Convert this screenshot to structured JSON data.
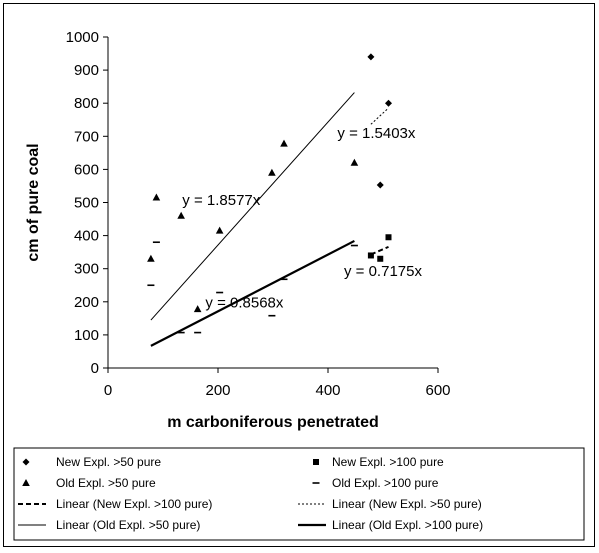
{
  "colors": {
    "axis": "#000000",
    "marker": "#000000",
    "thin_line": "#000000"
  },
  "chart_data": {
    "type": "scatter",
    "xlabel": "m carboniferous penetrated",
    "ylabel": "cm of pure coal",
    "xlim": [
      0,
      600
    ],
    "ylim": [
      0,
      1000
    ],
    "xticks": [
      "0",
      "200",
      "400",
      "600"
    ],
    "yticks": [
      "0",
      "100",
      "200",
      "300",
      "400",
      "500",
      "600",
      "700",
      "800",
      "900",
      "1000"
    ],
    "grid": false,
    "legend_position": "bottom",
    "series": [
      {
        "name": "New Expl. >50 pure",
        "marker": "diamond",
        "points": [
          [
            478,
            940
          ],
          [
            510,
            800
          ],
          [
            495,
            553
          ]
        ]
      },
      {
        "name": "New Expl. >100 pure",
        "marker": "square",
        "points": [
          [
            478,
            340
          ],
          [
            495,
            330
          ],
          [
            510,
            395
          ]
        ]
      },
      {
        "name": "Old Expl. >50 pure",
        "marker": "triangle",
        "points": [
          [
            78,
            330
          ],
          [
            88,
            515
          ],
          [
            133,
            460
          ],
          [
            163,
            178
          ],
          [
            203,
            415
          ],
          [
            298,
            590
          ],
          [
            320,
            678
          ],
          [
            448,
            620
          ]
        ]
      },
      {
        "name": "Old Expl. >100 pure",
        "marker": "dash",
        "points": [
          [
            78,
            250
          ],
          [
            88,
            380
          ],
          [
            133,
            107
          ],
          [
            163,
            107
          ],
          [
            203,
            228
          ],
          [
            298,
            158
          ],
          [
            320,
            268
          ],
          [
            448,
            370
          ]
        ]
      }
    ],
    "trendlines": [
      {
        "name": "Linear (New Expl. >100 pure)",
        "style": "dashed-bold",
        "slope": 0.7175,
        "x_range": [
          478,
          510
        ],
        "equation": "y = 0.7175x"
      },
      {
        "name": "Linear (New Expl. >50 pure)",
        "style": "dashed-thin",
        "slope": 1.5403,
        "x_range": [
          478,
          510
        ],
        "equation": "y = 1.5403x"
      },
      {
        "name": "Linear (Old Expl. >50 pure)",
        "style": "solid-thin",
        "slope": 1.8577,
        "x_range": [
          78,
          448
        ],
        "equation": "y = 1.8577x"
      },
      {
        "name": "Linear (Old Expl. >100 pure)",
        "style": "solid-bold",
        "slope": 0.8568,
        "x_range": [
          78,
          448
        ],
        "equation": "y = 0.8568x"
      }
    ],
    "legend": [
      {
        "label": "New Expl. >50 pure",
        "symbol": "diamond"
      },
      {
        "label": "New Expl. >100 pure",
        "symbol": "square"
      },
      {
        "label": "Old Expl. >50 pure",
        "symbol": "triangle"
      },
      {
        "label": "Old Expl. >100 pure",
        "symbol": "dash"
      },
      {
        "label": "Linear (New Expl. >100 pure)",
        "symbol": "dashed-bold"
      },
      {
        "label": "Linear (New Expl. >50 pure)",
        "symbol": "dashed-thin"
      },
      {
        "label": "Linear (Old Expl. >50 pure)",
        "symbol": "solid-thin"
      },
      {
        "label": "Linear (Old Expl. >100 pure)",
        "symbol": "solid-bold"
      }
    ]
  }
}
